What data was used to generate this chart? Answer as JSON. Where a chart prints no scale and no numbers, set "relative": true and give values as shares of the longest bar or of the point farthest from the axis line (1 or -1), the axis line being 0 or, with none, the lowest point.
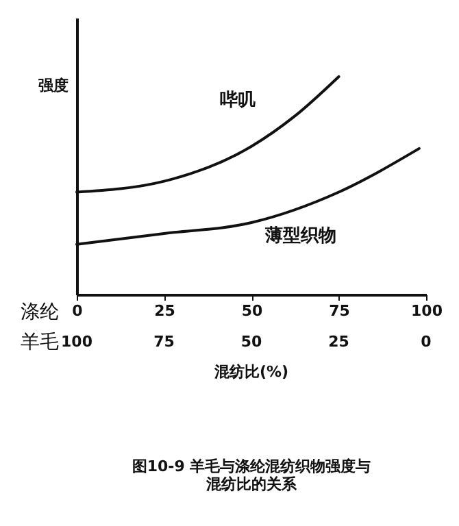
{
  "chart_data": {
    "type": "line",
    "title": "图10-9 羊毛与涤纶混纺织物强度与混纺比的关系",
    "xlabel": "混纺比(%)",
    "ylabel": "强度",
    "relative": true,
    "xlim": [
      0,
      100
    ],
    "xticks": [
      0,
      25,
      50,
      75,
      100
    ],
    "x2lim": [
      100,
      0
    ],
    "x2ticks": [
      100,
      75,
      50,
      25,
      0
    ],
    "series": [
      {
        "name": "哔叽",
        "color": "#111111",
        "x": [
          0,
          25,
          50,
          62.5,
          75
        ],
        "values": [
          0.47,
          0.52,
          0.68,
          0.82,
          1.0
        ]
      },
      {
        "name": "薄型织物",
        "color": "#111111",
        "x": [
          0,
          25,
          50,
          75,
          98
        ],
        "values": [
          0.23,
          0.28,
          0.33,
          0.47,
          0.67
        ]
      }
    ],
    "annotations": [
      "涤纶",
      "羊毛"
    ],
    "grid": false,
    "marker": "none",
    "line_style": "solid"
  }
}
